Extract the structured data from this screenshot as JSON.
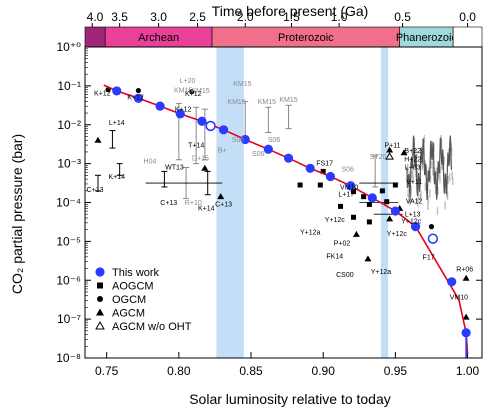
{
  "chart_data": {
    "type": "scatter",
    "title": "",
    "xlabel": "Solar luminosity relative to today",
    "ylabel": "CO₂ partial pressure (bar)",
    "x2label": "Time before present (Ga)",
    "xlim": [
      0.735,
      1.01
    ],
    "ylim_log10": [
      -8,
      0
    ],
    "yscale": "log",
    "x_ticks": [
      0.75,
      0.8,
      0.85,
      0.9,
      0.95,
      1.0
    ],
    "x_tick_labels": [
      "0.75",
      "0.80",
      "0.85",
      "0.90",
      "0.95",
      "1.00"
    ],
    "y_ticks_exp": [
      -8,
      -7,
      -6,
      -5,
      -4,
      -3,
      -2,
      -1,
      0
    ],
    "y_tick_labels": [
      "10⁻⁸",
      "10⁻⁷",
      "10⁻⁶",
      "10⁻⁵",
      "10⁻⁴",
      "10⁻³",
      "10⁻²",
      "10⁻¹",
      "10⁺⁰"
    ],
    "top_ticks": [
      {
        "label": "4.0",
        "x": 0.74
      },
      {
        "label": "3.5",
        "x": 0.759
      },
      {
        "label": "3.0",
        "x": 0.786
      },
      {
        "label": "2.5",
        "x": 0.813
      },
      {
        "label": "2.0",
        "x": 0.846
      },
      {
        "label": "1.5",
        "x": 0.878
      },
      {
        "label": "1.0",
        "x": 0.911
      },
      {
        "label": "0.5",
        "x": 0.955
      },
      {
        "label": "0.0",
        "x": 1.0
      }
    ],
    "eras": [
      {
        "name": "",
        "x0": 0.735,
        "x1": 0.749,
        "color": "#a0267a"
      },
      {
        "name": "Archean",
        "x0": 0.749,
        "x1": 0.823,
        "color": "#e9409a"
      },
      {
        "name": "Proterozoic",
        "x0": 0.823,
        "x1": 0.953,
        "color": "#f26f8b"
      },
      {
        "name": "Phanerozoic",
        "x0": 0.953,
        "x1": 0.99,
        "color": "#9fd9dc"
      },
      {
        "name": "",
        "x0": 0.99,
        "x1": 1.01,
        "color": "#ffffff"
      }
    ],
    "shaded_bands": [
      {
        "x0": 0.826,
        "x1": 0.845
      },
      {
        "x0": 0.94,
        "x1": 0.945
      }
    ],
    "series": [
      {
        "name": "This work",
        "marker": "filled-circle",
        "color": "#2a3cff",
        "points": [
          [
            0.757,
            -1.13
          ],
          [
            0.772,
            -1.32
          ],
          [
            0.787,
            -1.52
          ],
          [
            0.801,
            -1.72
          ],
          [
            0.816,
            -1.91
          ],
          [
            0.831,
            -2.13
          ],
          [
            0.846,
            -2.38
          ],
          [
            0.862,
            -2.63
          ],
          [
            0.876,
            -2.86
          ],
          [
            0.891,
            -3.12
          ],
          [
            0.905,
            -3.33
          ],
          [
            0.919,
            -3.57
          ],
          [
            0.934,
            -3.88
          ],
          [
            0.95,
            -4.22
          ],
          [
            0.964,
            -4.62
          ],
          [
            0.989,
            -6.04
          ],
          [
            0.999,
            -7.35
          ]
        ]
      },
      {
        "name": "This work (hollow)",
        "marker": "hollow-circle",
        "color": "#2a3cff",
        "points": [
          [
            0.822,
            -2.03
          ],
          [
            0.976,
            -4.93
          ]
        ]
      }
    ],
    "legend": {
      "placement": "bottom-left",
      "entries": [
        {
          "label": "This work",
          "marker": "filled-circle"
        },
        {
          "label": "AOGCM",
          "marker": "square"
        },
        {
          "label": "OGCM",
          "marker": "small-circle"
        },
        {
          "label": "AGCM",
          "marker": "triangle"
        },
        {
          "label": "AGCM w/o OHT",
          "marker": "hollow-triangle"
        }
      ]
    },
    "annotations": [
      {
        "text": "K+12",
        "x": 0.747,
        "y": -1.25,
        "color": "#000"
      },
      {
        "text": "K+12",
        "x": 0.77,
        "y": -1.35,
        "color": "#000"
      },
      {
        "text": "K+12",
        "x": 0.803,
        "y": -1.66,
        "color": "#000"
      },
      {
        "text": "K+12",
        "x": 0.81,
        "y": -1.26,
        "color": "#000"
      },
      {
        "text": "L+14",
        "x": 0.757,
        "y": -2.0,
        "color": "#000"
      },
      {
        "text": "L+20",
        "x": 0.806,
        "y": -0.92,
        "color": "#888"
      },
      {
        "text": "KM15",
        "x": 0.803,
        "y": -1.17,
        "color": "#888"
      },
      {
        "text": "KM15",
        "x": 0.815,
        "y": -1.18,
        "color": "#888"
      },
      {
        "text": "KM15",
        "x": 0.844,
        "y": -1.0,
        "color": "#888"
      },
      {
        "text": "KM15",
        "x": 0.84,
        "y": -1.47,
        "color": "#888"
      },
      {
        "text": "KM15",
        "x": 0.861,
        "y": -1.47,
        "color": "#888"
      },
      {
        "text": "KM15",
        "x": 0.876,
        "y": -1.41,
        "color": "#888"
      },
      {
        "text": "T+14",
        "x": 0.812,
        "y": -2.58,
        "color": "#000"
      },
      {
        "text": "D+15",
        "x": 0.815,
        "y": -2.92,
        "color": "#888"
      },
      {
        "text": "B+",
        "x": 0.83,
        "y": -2.72,
        "color": "#888"
      },
      {
        "text": "S06",
        "x": 0.841,
        "y": -2.45,
        "color": "#888"
      },
      {
        "text": "S06",
        "x": 0.855,
        "y": -2.8,
        "color": "#888"
      },
      {
        "text": "S06",
        "x": 0.866,
        "y": -2.45,
        "color": "#888"
      },
      {
        "text": "H04",
        "x": 0.78,
        "y": -3.0,
        "color": "#888"
      },
      {
        "text": "K+14",
        "x": 0.757,
        "y": -3.4,
        "color": "#000"
      },
      {
        "text": "C+13",
        "x": 0.742,
        "y": -3.73,
        "color": "#000"
      },
      {
        "text": "WT13",
        "x": 0.797,
        "y": -3.15,
        "color": "#000"
      },
      {
        "text": "C+13",
        "x": 0.793,
        "y": -4.07,
        "color": "#000"
      },
      {
        "text": "R+10",
        "x": 0.81,
        "y": -4.07,
        "color": "#888"
      },
      {
        "text": "K+14",
        "x": 0.819,
        "y": -4.21,
        "color": "#000"
      },
      {
        "text": "C+13",
        "x": 0.831,
        "y": -4.1,
        "color": "#000"
      },
      {
        "text": "S06",
        "x": 0.917,
        "y": -3.2,
        "color": "#888"
      },
      {
        "text": "FS17",
        "x": 0.901,
        "y": -3.05,
        "color": "#000"
      },
      {
        "text": "Y+12a",
        "x": 0.891,
        "y": -4.82,
        "color": "#000"
      },
      {
        "text": "VM10",
        "x": 0.918,
        "y": -3.66,
        "color": "#000"
      },
      {
        "text": "L+17",
        "x": 0.916,
        "y": -3.85,
        "color": "#000"
      },
      {
        "text": "Y+12c",
        "x": 0.908,
        "y": -4.5,
        "color": "#000"
      },
      {
        "text": "P+02",
        "x": 0.913,
        "y": -5.1,
        "color": "#000"
      },
      {
        "text": "FK14",
        "x": 0.908,
        "y": -5.44,
        "color": "#000"
      },
      {
        "text": "CS00",
        "x": 0.915,
        "y": -5.91,
        "color": "#000"
      },
      {
        "text": "Y+12a",
        "x": 0.94,
        "y": -5.84,
        "color": "#000"
      },
      {
        "text": "P+11",
        "x": 0.948,
        "y": -2.58,
        "color": "#000"
      },
      {
        "text": "B+22",
        "x": 0.962,
        "y": -2.73,
        "color": "#000"
      },
      {
        "text": "ST20",
        "x": 0.938,
        "y": -2.88,
        "color": "#888"
      },
      {
        "text": "H+22",
        "x": 0.962,
        "y": -2.94,
        "color": "#000"
      },
      {
        "text": "L+03",
        "x": 0.962,
        "y": -3.15,
        "color": "#000"
      },
      {
        "text": "V+11",
        "x": 0.963,
        "y": -3.53,
        "color": "#000"
      },
      {
        "text": "VA12",
        "x": 0.963,
        "y": -4.03,
        "color": "#000"
      },
      {
        "text": "L+13",
        "x": 0.962,
        "y": -4.36,
        "color": "#000"
      },
      {
        "text": "Y+12c",
        "x": 0.961,
        "y": -4.54,
        "color": "#000"
      },
      {
        "text": "Y+12c",
        "x": 0.951,
        "y": -4.86,
        "color": "#000"
      },
      {
        "text": "F17",
        "x": 0.973,
        "y": -5.46,
        "color": "#000"
      },
      {
        "text": "R+06",
        "x": 0.998,
        "y": -5.78,
        "color": "#000"
      },
      {
        "text": "VM10",
        "x": 0.994,
        "y": -6.5,
        "color": "#000"
      }
    ]
  }
}
